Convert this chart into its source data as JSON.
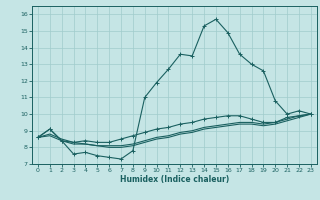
{
  "xlabel": "Humidex (Indice chaleur)",
  "background_color": "#c5e5e5",
  "grid_color": "#a0cccc",
  "line_color": "#1a6060",
  "xlim": [
    -0.5,
    23.5
  ],
  "ylim": [
    7,
    16.5
  ],
  "xticks": [
    0,
    1,
    2,
    3,
    4,
    5,
    6,
    7,
    8,
    9,
    10,
    11,
    12,
    13,
    14,
    15,
    16,
    17,
    18,
    19,
    20,
    21,
    22,
    23
  ],
  "yticks": [
    7,
    8,
    9,
    10,
    11,
    12,
    13,
    14,
    15,
    16
  ],
  "curve1_x": [
    0,
    1,
    2,
    3,
    4,
    5,
    6,
    7,
    8,
    9,
    10,
    11,
    12,
    13,
    14,
    15,
    16,
    17,
    18,
    19,
    20,
    21,
    22,
    23
  ],
  "curve1_y": [
    8.6,
    9.1,
    8.4,
    7.6,
    7.7,
    7.5,
    7.4,
    7.3,
    7.8,
    11.0,
    11.9,
    12.7,
    13.6,
    13.5,
    15.3,
    15.7,
    14.9,
    13.6,
    13.0,
    12.6,
    10.8,
    10.0,
    10.2,
    10.0
  ],
  "curve2_x": [
    0,
    1,
    2,
    3,
    4,
    5,
    6,
    7,
    8,
    9,
    10,
    11,
    12,
    13,
    14,
    15,
    16,
    17,
    18,
    19,
    20,
    21,
    22,
    23
  ],
  "curve2_y": [
    8.6,
    9.1,
    8.4,
    8.3,
    8.4,
    8.3,
    8.3,
    8.5,
    8.7,
    8.9,
    9.1,
    9.2,
    9.4,
    9.5,
    9.7,
    9.8,
    9.9,
    9.9,
    9.7,
    9.5,
    9.5,
    9.8,
    9.9,
    10.0
  ],
  "curve3_x": [
    0,
    1,
    2,
    3,
    4,
    5,
    6,
    7,
    8,
    9,
    10,
    11,
    12,
    13,
    14,
    15,
    16,
    17,
    18,
    19,
    20,
    21,
    22,
    23
  ],
  "curve3_y": [
    8.6,
    8.8,
    8.5,
    8.3,
    8.2,
    8.1,
    8.1,
    8.1,
    8.2,
    8.4,
    8.6,
    8.7,
    8.9,
    9.0,
    9.2,
    9.3,
    9.4,
    9.5,
    9.5,
    9.4,
    9.5,
    9.7,
    9.9,
    10.0
  ],
  "curve4_x": [
    0,
    1,
    2,
    3,
    4,
    5,
    6,
    7,
    8,
    9,
    10,
    11,
    12,
    13,
    14,
    15,
    16,
    17,
    18,
    19,
    20,
    21,
    22,
    23
  ],
  "curve4_y": [
    8.6,
    8.7,
    8.4,
    8.2,
    8.2,
    8.1,
    8.0,
    8.0,
    8.1,
    8.3,
    8.5,
    8.6,
    8.8,
    8.9,
    9.1,
    9.2,
    9.3,
    9.4,
    9.4,
    9.3,
    9.4,
    9.6,
    9.8,
    10.0
  ]
}
